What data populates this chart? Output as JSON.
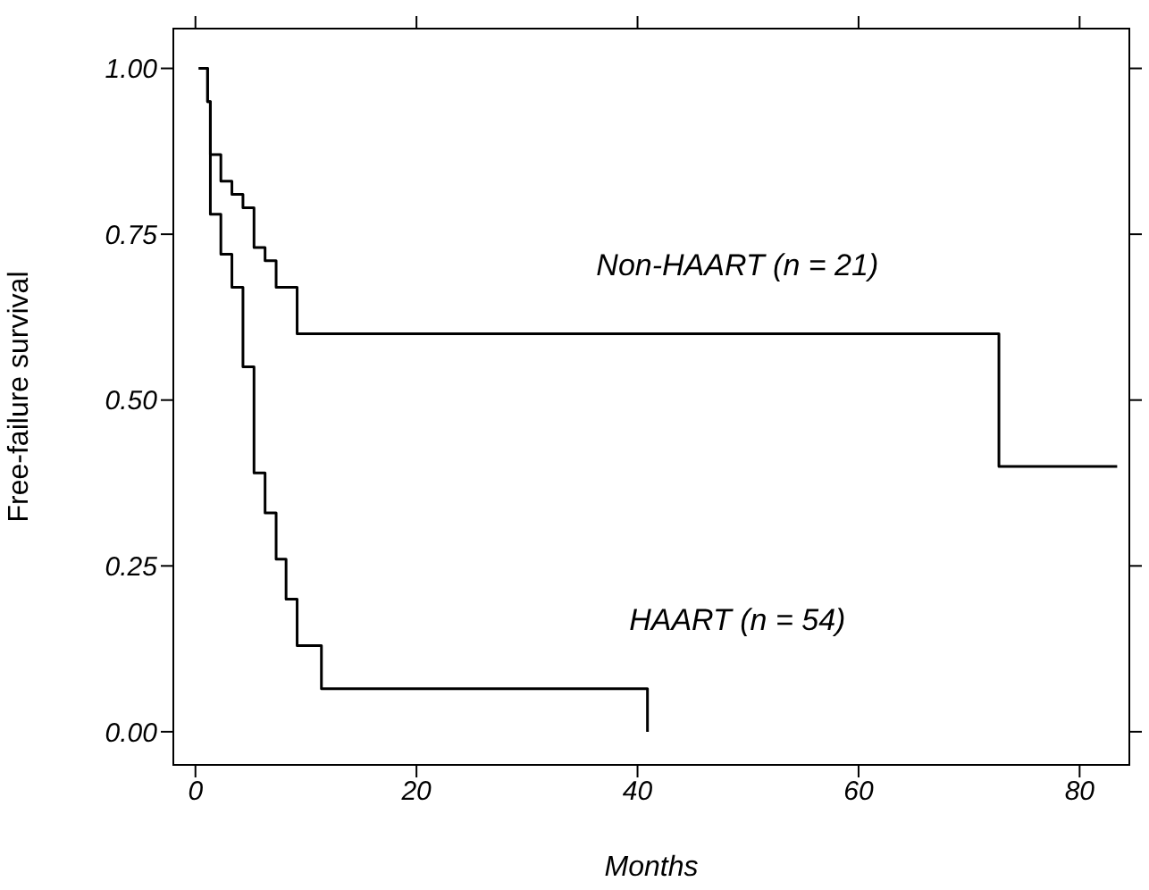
{
  "chart_data": {
    "type": "step",
    "xlabel": "Months",
    "ylabel": "Free-failure survival",
    "xlim": [
      -2,
      84.5
    ],
    "xticks": [
      0,
      20,
      40,
      60,
      80
    ],
    "ylim": [
      -0.05,
      1.06
    ],
    "yticks": [
      {
        "value": 0,
        "label": "0.00"
      },
      {
        "value": 0.25,
        "label": "0.25"
      },
      {
        "value": 0.5,
        "label": "0.50"
      },
      {
        "value": 0.75,
        "label": "0.75"
      },
      {
        "value": 1,
        "label": "1.00"
      }
    ],
    "grid": false,
    "legend": false,
    "marker": "none",
    "line_style": "solid",
    "series": [
      {
        "name": "Non-HAART (n = 21)",
        "color": "#000000",
        "x": [
          0.3,
          1.1,
          1.35,
          2.3,
          3.3,
          4.3,
          5.3,
          6.3,
          7.3,
          9.2,
          72.7,
          83.4
        ],
        "values": [
          1.0,
          0.95,
          0.87,
          0.83,
          0.81,
          0.79,
          0.73,
          0.71,
          0.67,
          0.6,
          0.4,
          0.4
        ]
      },
      {
        "name": "HAART (n = 54)",
        "color": "#000000",
        "x": [
          0.3,
          1.1,
          1.35,
          2.3,
          3.3,
          4.3,
          5.3,
          6.3,
          7.3,
          8.2,
          9.2,
          11.4,
          40.9
        ],
        "values": [
          1.0,
          0.95,
          0.78,
          0.72,
          0.67,
          0.55,
          0.39,
          0.33,
          0.26,
          0.2,
          0.13,
          0.065,
          0
        ]
      }
    ]
  }
}
